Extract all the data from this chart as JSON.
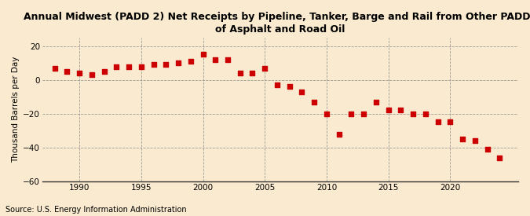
{
  "title": "Annual Midwest (PADD 2) Net Receipts by Pipeline, Tanker, Barge and Rail from Other PADDs\nof Asphalt and Road Oil",
  "ylabel": "Thousand Barrels per Day",
  "source": "Source: U.S. Energy Information Administration",
  "background_color": "#faebd0",
  "marker_color": "#cc0000",
  "xlim": [
    1987,
    2025.5
  ],
  "ylim": [
    -60,
    25
  ],
  "yticks": [
    -60,
    -40,
    -20,
    0,
    20
  ],
  "xticks": [
    1990,
    1995,
    2000,
    2005,
    2010,
    2015,
    2020
  ],
  "years": [
    1988,
    1989,
    1990,
    1991,
    1992,
    1993,
    1994,
    1995,
    1996,
    1997,
    1998,
    1999,
    2000,
    2001,
    2002,
    2003,
    2004,
    2005,
    2006,
    2007,
    2008,
    2009,
    2010,
    2011,
    2012,
    2013,
    2014,
    2015,
    2016,
    2017,
    2018,
    2019,
    2020,
    2021,
    2022,
    2023,
    2024
  ],
  "values": [
    7,
    5,
    4,
    3,
    5,
    8,
    8,
    8,
    9,
    9,
    10,
    11,
    15,
    12,
    12,
    4,
    4,
    7,
    -3,
    -4,
    -7,
    -13,
    -20,
    -32,
    -20,
    -20,
    -13,
    -18,
    -18,
    -20,
    -20,
    -25,
    -25,
    -35,
    -36,
    -41,
    -46
  ],
  "title_fontsize": 9,
  "axis_fontsize": 7.5,
  "source_fontsize": 7
}
